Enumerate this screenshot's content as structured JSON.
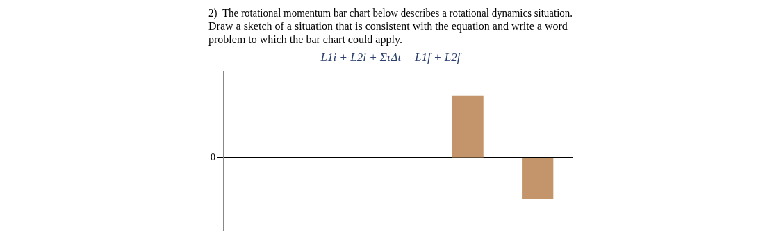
{
  "chart_data": {
    "type": "bar",
    "title": [
      "2)  The rotational momentum bar chart below describes a rotational dynamics situation.",
      "Draw a sketch of a situation that is consistent with the equation and write a word",
      "problem to which the bar chart could apply."
    ],
    "subtitle": "L1i + L2i + ΣτΔt = L1f + L2f",
    "categories": [
      null,
      null,
      null,
      null,
      null
    ],
    "values": [
      0,
      0,
      0,
      3.0,
      -2.0
    ],
    "color": "#C4956A",
    "ylim": [
      -3.5,
      4.2
    ],
    "yticks": [
      0
    ],
    "grid": true,
    "tick_labels": "y"
  }
}
